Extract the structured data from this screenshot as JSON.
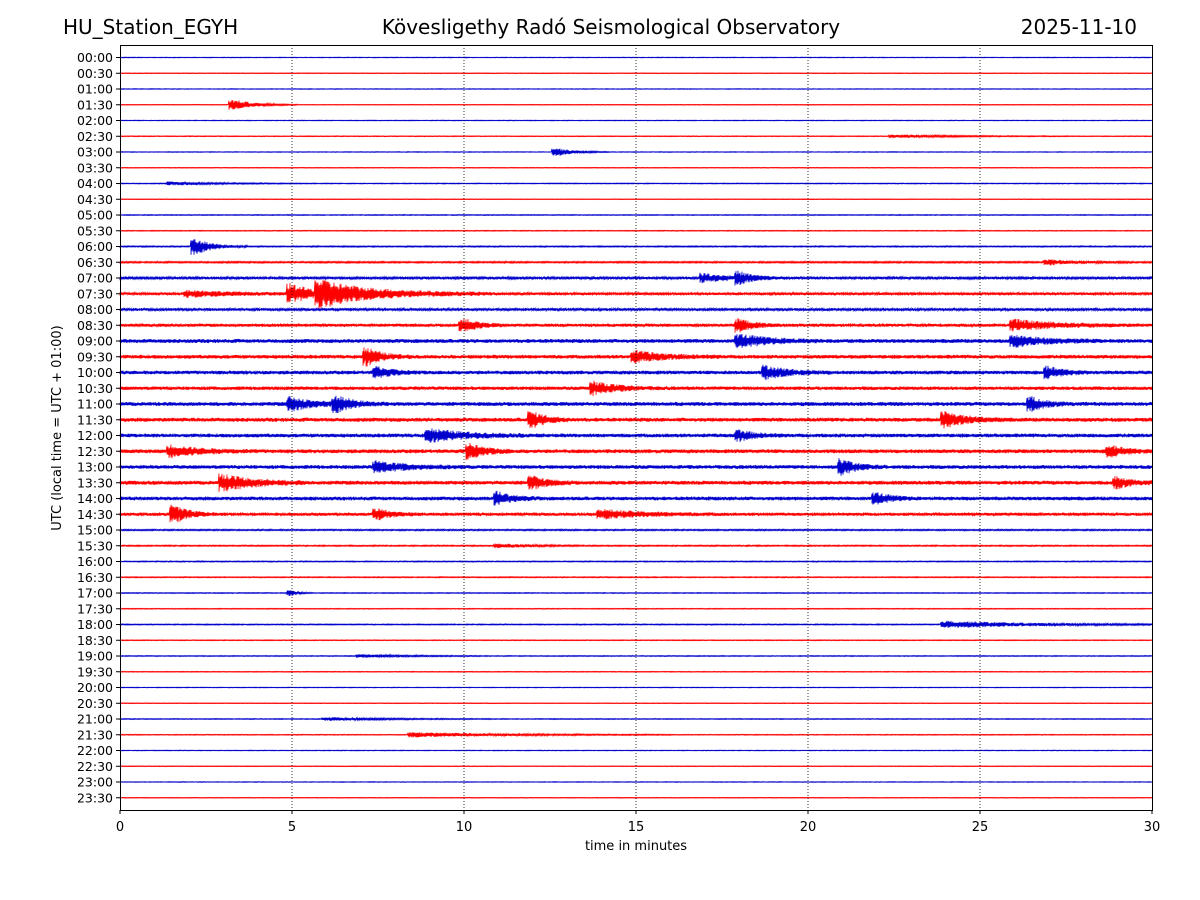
{
  "header": {
    "station": "HU_Station_EGYH",
    "observatory": "Kövesligethy Radó Seismological Observatory",
    "date": "2025-11-10"
  },
  "colors": {
    "even_trace": "#0000cc",
    "odd_trace": "#ff0000",
    "grid": "#000000"
  },
  "chart_data": {
    "type": "line",
    "title": "Kövesligethy Radó Seismological Observatory",
    "xlabel": "time in minutes",
    "ylabel": "UTC (local time = UTC + 01:00)",
    "xlim": [
      0,
      30
    ],
    "xticks": [
      0,
      5,
      10,
      15,
      20,
      25,
      30
    ],
    "grid": "vertical dotted at x ticks",
    "row_labels": [
      "00:00",
      "00:30",
      "01:00",
      "01:30",
      "02:00",
      "02:30",
      "03:00",
      "03:30",
      "04:00",
      "04:30",
      "05:00",
      "05:30",
      "06:00",
      "06:30",
      "07:00",
      "07:30",
      "08:00",
      "08:30",
      "09:00",
      "09:30",
      "10:00",
      "10:30",
      "11:00",
      "11:30",
      "12:00",
      "12:30",
      "13:00",
      "13:30",
      "14:00",
      "14:30",
      "15:00",
      "15:30",
      "16:00",
      "16:30",
      "17:00",
      "17:30",
      "18:00",
      "18:30",
      "19:00",
      "19:30",
      "20:00",
      "20:30",
      "21:00",
      "21:30",
      "22:00",
      "22:30",
      "23:00",
      "23:30"
    ],
    "noise_levels": [
      0.3,
      0.3,
      0.3,
      0.3,
      0.3,
      0.35,
      0.3,
      0.3,
      0.4,
      0.3,
      0.4,
      0.4,
      0.6,
      0.8,
      1.2,
      1.4,
      1.3,
      1.6,
      2.0,
      1.9,
      1.9,
      1.8,
      2.0,
      2.0,
      1.9,
      2.0,
      1.9,
      2.0,
      1.9,
      1.6,
      0.7,
      0.6,
      0.5,
      0.5,
      0.4,
      0.4,
      0.5,
      0.4,
      0.4,
      0.35,
      0.3,
      0.3,
      0.4,
      0.4,
      0.3,
      0.3,
      0.3,
      0.3
    ],
    "events": [
      {
        "row": 3,
        "minute": 3.3,
        "amplitude": 5,
        "duration_min": 1.5
      },
      {
        "row": 5,
        "minute": 22.5,
        "amplitude": 1.5,
        "duration_min": 4
      },
      {
        "row": 6,
        "minute": 12.7,
        "amplitude": 4,
        "duration_min": 1.2
      },
      {
        "row": 8,
        "minute": 1.5,
        "amplitude": 1.6,
        "duration_min": 3
      },
      {
        "row": 12,
        "minute": 2.2,
        "amplitude": 8,
        "duration_min": 1.2
      },
      {
        "row": 13,
        "minute": 27,
        "amplitude": 2.5,
        "duration_min": 2
      },
      {
        "row": 14,
        "minute": 17,
        "amplitude": 4,
        "duration_min": 2
      },
      {
        "row": 14,
        "minute": 18,
        "amplitude": 5,
        "duration_min": 1
      },
      {
        "row": 15,
        "minute": 5,
        "amplitude": 9,
        "duration_min": 1.5
      },
      {
        "row": 15,
        "minute": 5.8,
        "amplitude": 12,
        "duration_min": 4
      },
      {
        "row": 15,
        "minute": 2,
        "amplitude": 3,
        "duration_min": 3
      },
      {
        "row": 17,
        "minute": 10,
        "amplitude": 6,
        "duration_min": 1
      },
      {
        "row": 17,
        "minute": 18,
        "amplitude": 6,
        "duration_min": 1
      },
      {
        "row": 17,
        "minute": 26,
        "amplitude": 5,
        "duration_min": 3
      },
      {
        "row": 18,
        "minute": 18,
        "amplitude": 6,
        "duration_min": 2
      },
      {
        "row": 18,
        "minute": 26,
        "amplitude": 5,
        "duration_min": 2
      },
      {
        "row": 19,
        "minute": 7.2,
        "amplitude": 8,
        "duration_min": 1
      },
      {
        "row": 19,
        "minute": 15,
        "amplitude": 5,
        "duration_min": 2
      },
      {
        "row": 20,
        "minute": 7.5,
        "amplitude": 5,
        "duration_min": 1
      },
      {
        "row": 20,
        "minute": 18.8,
        "amplitude": 6,
        "duration_min": 1.5
      },
      {
        "row": 20,
        "minute": 27,
        "amplitude": 5,
        "duration_min": 1
      },
      {
        "row": 21,
        "minute": 13.8,
        "amplitude": 6,
        "duration_min": 1.5
      },
      {
        "row": 22,
        "minute": 5,
        "amplitude": 6,
        "duration_min": 1.5
      },
      {
        "row": 22,
        "minute": 6.3,
        "amplitude": 7,
        "duration_min": 1.2
      },
      {
        "row": 22,
        "minute": 26.5,
        "amplitude": 6,
        "duration_min": 1
      },
      {
        "row": 23,
        "minute": 12,
        "amplitude": 7,
        "duration_min": 1
      },
      {
        "row": 23,
        "minute": 24,
        "amplitude": 7,
        "duration_min": 1.5
      },
      {
        "row": 24,
        "minute": 9,
        "amplitude": 6,
        "duration_min": 2.5
      },
      {
        "row": 24,
        "minute": 18,
        "amplitude": 5,
        "duration_min": 1
      },
      {
        "row": 25,
        "minute": 1.5,
        "amplitude": 5,
        "duration_min": 2
      },
      {
        "row": 25,
        "minute": 10.2,
        "amplitude": 7,
        "duration_min": 1
      },
      {
        "row": 25,
        "minute": 28.8,
        "amplitude": 5,
        "duration_min": 1
      },
      {
        "row": 26,
        "minute": 21,
        "amplitude": 7,
        "duration_min": 1
      },
      {
        "row": 26,
        "minute": 7.5,
        "amplitude": 5,
        "duration_min": 2
      },
      {
        "row": 27,
        "minute": 3,
        "amplitude": 8,
        "duration_min": 2
      },
      {
        "row": 27,
        "minute": 12,
        "amplitude": 6,
        "duration_min": 1
      },
      {
        "row": 27,
        "minute": 29,
        "amplitude": 5,
        "duration_min": 1
      },
      {
        "row": 28,
        "minute": 11,
        "amplitude": 6,
        "duration_min": 1
      },
      {
        "row": 28,
        "minute": 22,
        "amplitude": 5,
        "duration_min": 1
      },
      {
        "row": 29,
        "minute": 1.6,
        "amplitude": 8,
        "duration_min": 1
      },
      {
        "row": 29,
        "minute": 7.5,
        "amplitude": 5,
        "duration_min": 1
      },
      {
        "row": 29,
        "minute": 14,
        "amplitude": 4,
        "duration_min": 3
      },
      {
        "row": 31,
        "minute": 11,
        "amplitude": 2,
        "duration_min": 2
      },
      {
        "row": 34,
        "minute": 5,
        "amplitude": 2.5,
        "duration_min": 0.5
      },
      {
        "row": 36,
        "minute": 24,
        "amplitude": 3.5,
        "duration_min": 6
      },
      {
        "row": 38,
        "minute": 7,
        "amplitude": 1.6,
        "duration_min": 3
      },
      {
        "row": 42,
        "minute": 6,
        "amplitude": 1.5,
        "duration_min": 4
      },
      {
        "row": 43,
        "minute": 8.5,
        "amplitude": 2.5,
        "duration_min": 6
      }
    ]
  }
}
